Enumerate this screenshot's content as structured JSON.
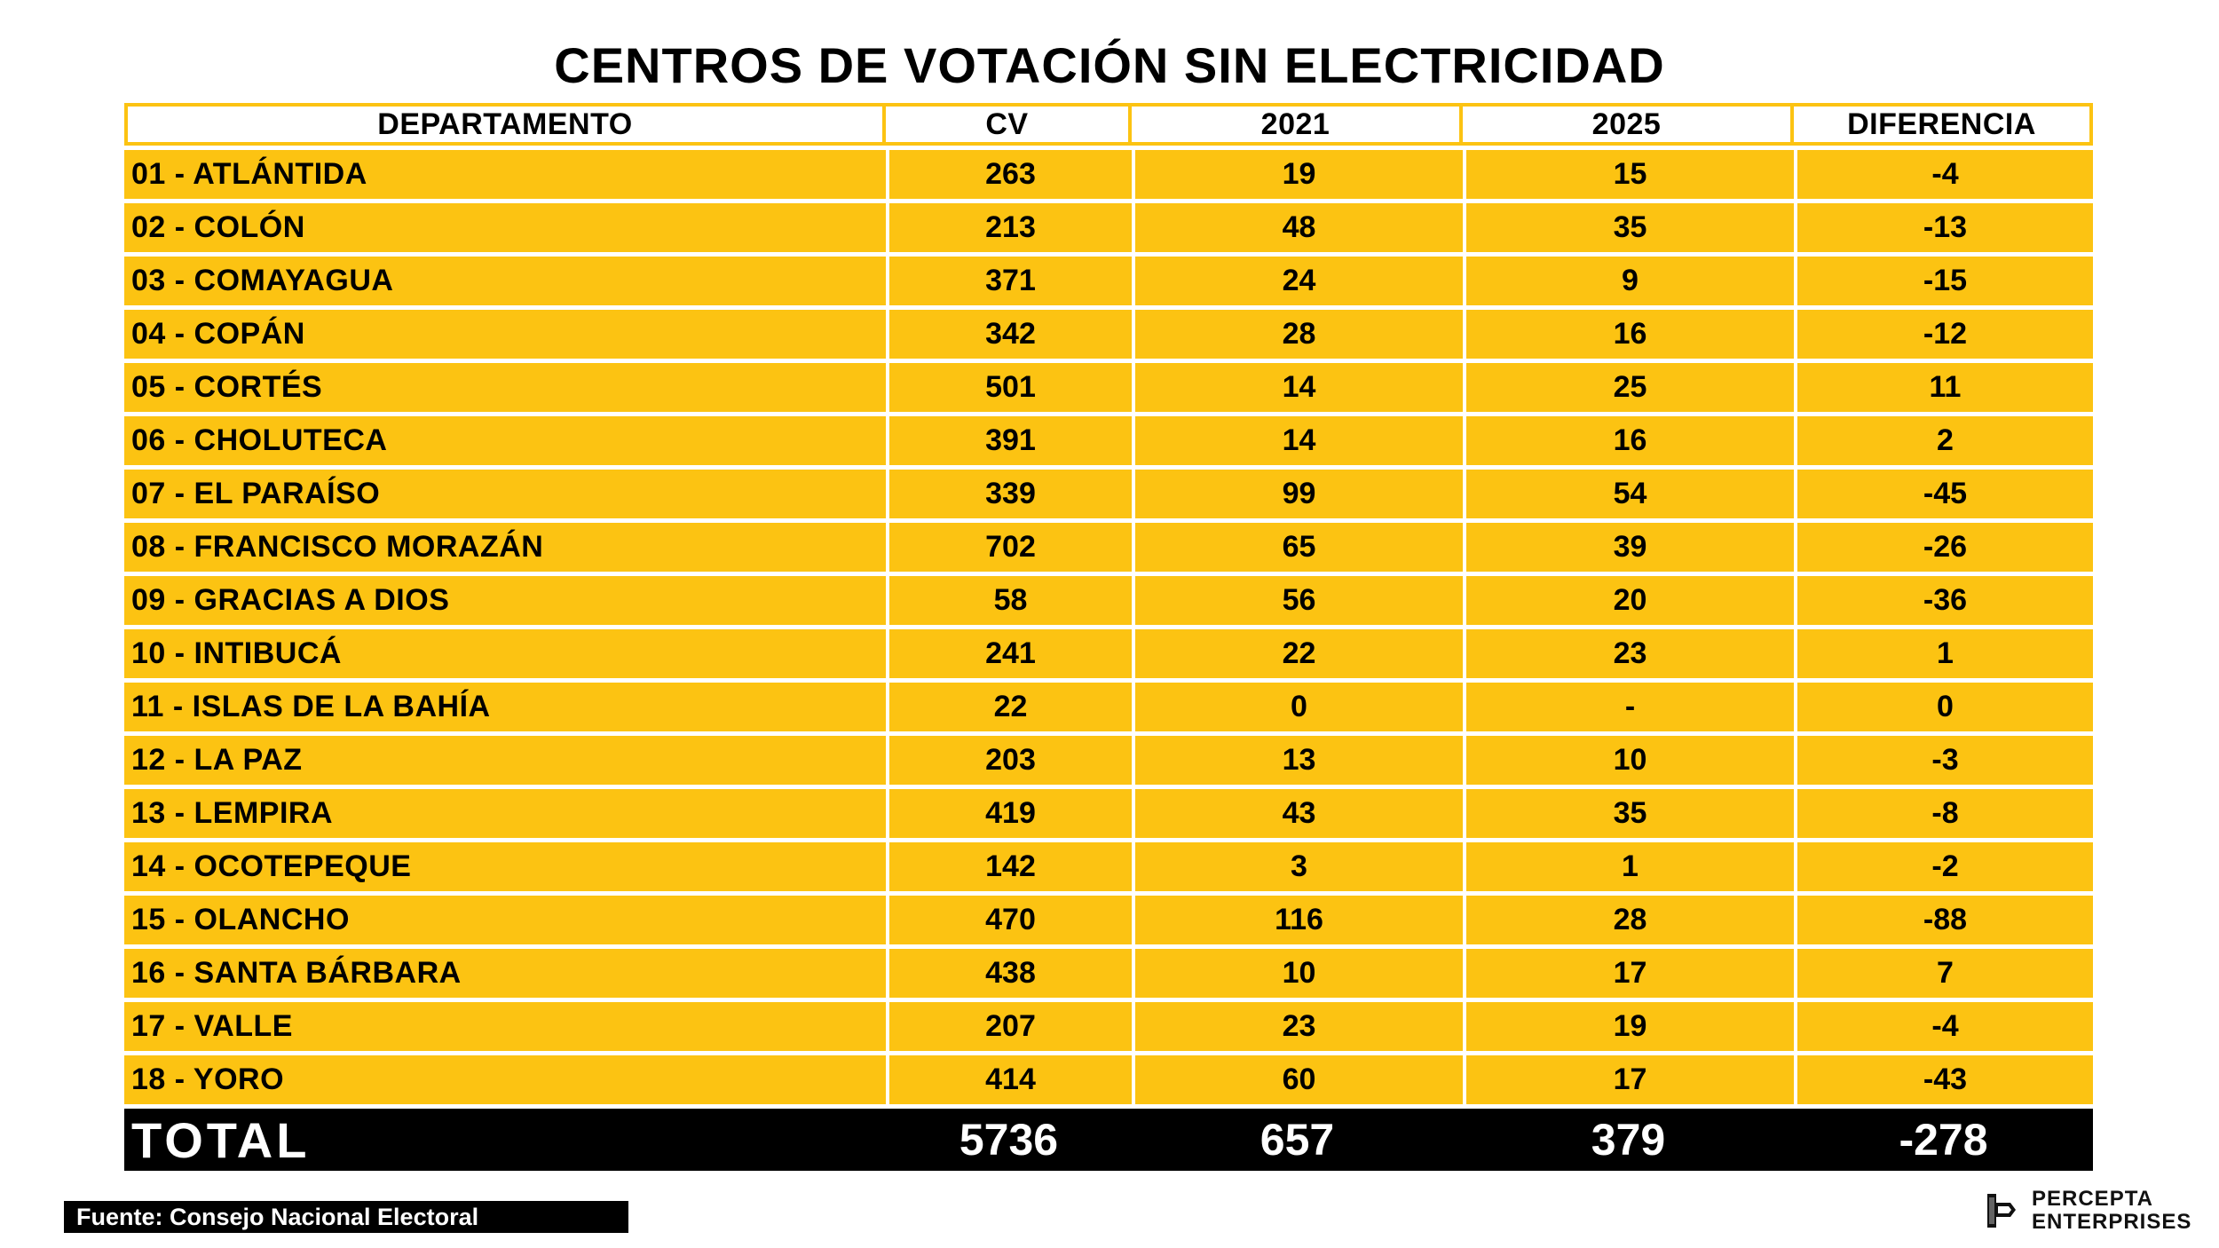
{
  "title": "CENTROS DE VOTACIÓN SIN ELECTRICIDAD",
  "colors": {
    "accent": "#FCC312",
    "total_bg": "#000000",
    "text": "#000000"
  },
  "table": {
    "headers": [
      "DEPARTAMENTO",
      "CV",
      "2021",
      "2025",
      "DIFERENCIA"
    ],
    "rows": [
      [
        "01 - ATLÁNTIDA",
        "263",
        "19",
        "15",
        "-4"
      ],
      [
        "02 - COLÓN",
        "213",
        "48",
        "35",
        "-13"
      ],
      [
        "03 - COMAYAGUA",
        "371",
        "24",
        "9",
        "-15"
      ],
      [
        "04 - COPÁN",
        "342",
        "28",
        "16",
        "-12"
      ],
      [
        "05 - CORTÉS",
        "501",
        "14",
        "25",
        "11"
      ],
      [
        "06 - CHOLUTECA",
        "391",
        "14",
        "16",
        "2"
      ],
      [
        "07 - EL PARAÍSO",
        "339",
        "99",
        "54",
        "-45"
      ],
      [
        "08 - FRANCISCO MORAZÁN",
        "702",
        "65",
        "39",
        "-26"
      ],
      [
        "09 - GRACIAS A DIOS",
        "58",
        "56",
        "20",
        "-36"
      ],
      [
        "10 - INTIBUCÁ",
        "241",
        "22",
        "23",
        "1"
      ],
      [
        "11 - ISLAS DE LA BAHÍA",
        "22",
        "0",
        "-",
        "0"
      ],
      [
        "12 - LA PAZ",
        "203",
        "13",
        "10",
        "-3"
      ],
      [
        "13 - LEMPIRA",
        "419",
        "43",
        "35",
        "-8"
      ],
      [
        "14 - OCOTEPEQUE",
        "142",
        "3",
        "1",
        "-2"
      ],
      [
        "15 - OLANCHO",
        "470",
        "116",
        "28",
        "-88"
      ],
      [
        "16 - SANTA BÁRBARA",
        "438",
        "10",
        "17",
        "7"
      ],
      [
        "17 - VALLE",
        "207",
        "23",
        "19",
        "-4"
      ],
      [
        "18 - YORO",
        "414",
        "60",
        "17",
        "-43"
      ]
    ],
    "total": [
      "TOTAL",
      "5736",
      "657",
      "379",
      "-278"
    ]
  },
  "source": "Fuente: Consejo Nacional Electoral",
  "brand": {
    "line1": "PERCEPTA",
    "line2": "ENTERPRISES",
    "logo_icon": "percepta-logo-icon"
  }
}
